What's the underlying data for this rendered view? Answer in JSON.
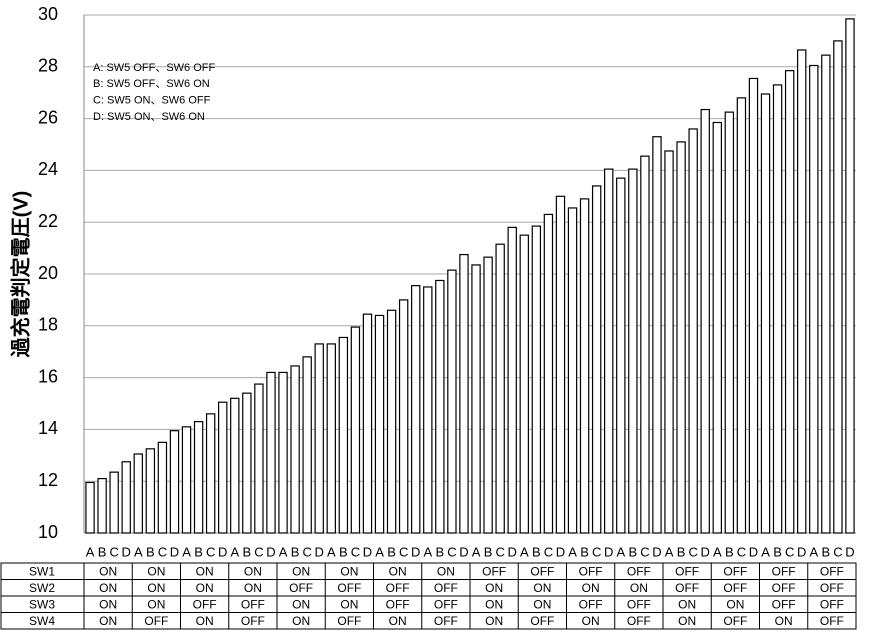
{
  "chart_data": {
    "type": "bar",
    "y_label": "過充電判定電圧(V)",
    "notes": [
      "A: SW5 OFF、SW6 OFF",
      "B: SW5 OFF、SW6 ON",
      "C: SW5 ON、SW6 OFF",
      "D: SW5 ON、SW6 ON"
    ],
    "categories": [
      "A",
      "B",
      "C",
      "D",
      "A",
      "B",
      "C",
      "D",
      "A",
      "B",
      "C",
      "D",
      "A",
      "B",
      "C",
      "D",
      "A",
      "B",
      "C",
      "D",
      "A",
      "B",
      "C",
      "D",
      "A",
      "B",
      "C",
      "D",
      "A",
      "B",
      "C",
      "D",
      "A",
      "B",
      "C",
      "D",
      "A",
      "B",
      "C",
      "D",
      "A",
      "B",
      "C",
      "D",
      "A",
      "B",
      "C",
      "D",
      "A",
      "B",
      "C",
      "D",
      "A",
      "B",
      "C",
      "D",
      "A",
      "B",
      "C",
      "D",
      "A",
      "B",
      "C",
      "D"
    ],
    "values": [
      11.95,
      12.1,
      12.35,
      12.75,
      13.05,
      13.25,
      13.5,
      13.95,
      14.1,
      14.3,
      14.6,
      15.05,
      15.2,
      15.4,
      15.75,
      16.2,
      16.2,
      16.45,
      16.8,
      17.3,
      17.3,
      17.55,
      17.95,
      18.45,
      18.4,
      18.6,
      19.0,
      19.55,
      19.5,
      19.75,
      20.15,
      20.75,
      20.35,
      20.65,
      21.15,
      21.8,
      21.5,
      21.85,
      22.3,
      23.0,
      22.55,
      22.9,
      23.4,
      24.05,
      23.7,
      24.05,
      24.55,
      25.3,
      24.75,
      25.1,
      25.6,
      26.35,
      25.85,
      26.25,
      26.8,
      27.55,
      26.95,
      27.3,
      27.85,
      28.65,
      28.05,
      28.45,
      29.0,
      29.85
    ],
    "color": "#ffffff",
    "ylim": [
      10,
      30
    ],
    "yticks": [
      10,
      12,
      14,
      16,
      18,
      20,
      22,
      24,
      26,
      28,
      30
    ],
    "grid": true
  },
  "switch_table": {
    "rows": [
      {
        "label": "SW1",
        "values": [
          "ON",
          "ON",
          "ON",
          "ON",
          "ON",
          "ON",
          "ON",
          "ON",
          "OFF",
          "OFF",
          "OFF",
          "OFF",
          "OFF",
          "OFF",
          "OFF",
          "OFF"
        ]
      },
      {
        "label": "SW2",
        "values": [
          "ON",
          "ON",
          "ON",
          "ON",
          "OFF",
          "OFF",
          "OFF",
          "OFF",
          "ON",
          "ON",
          "ON",
          "ON",
          "OFF",
          "OFF",
          "OFF",
          "OFF"
        ]
      },
      {
        "label": "SW3",
        "values": [
          "ON",
          "ON",
          "OFF",
          "OFF",
          "ON",
          "ON",
          "OFF",
          "OFF",
          "ON",
          "ON",
          "OFF",
          "OFF",
          "ON",
          "ON",
          "OFF",
          "OFF"
        ]
      },
      {
        "label": "SW4",
        "values": [
          "ON",
          "OFF",
          "ON",
          "OFF",
          "ON",
          "OFF",
          "ON",
          "OFF",
          "ON",
          "OFF",
          "ON",
          "OFF",
          "ON",
          "OFF",
          "ON",
          "OFF"
        ]
      }
    ]
  }
}
